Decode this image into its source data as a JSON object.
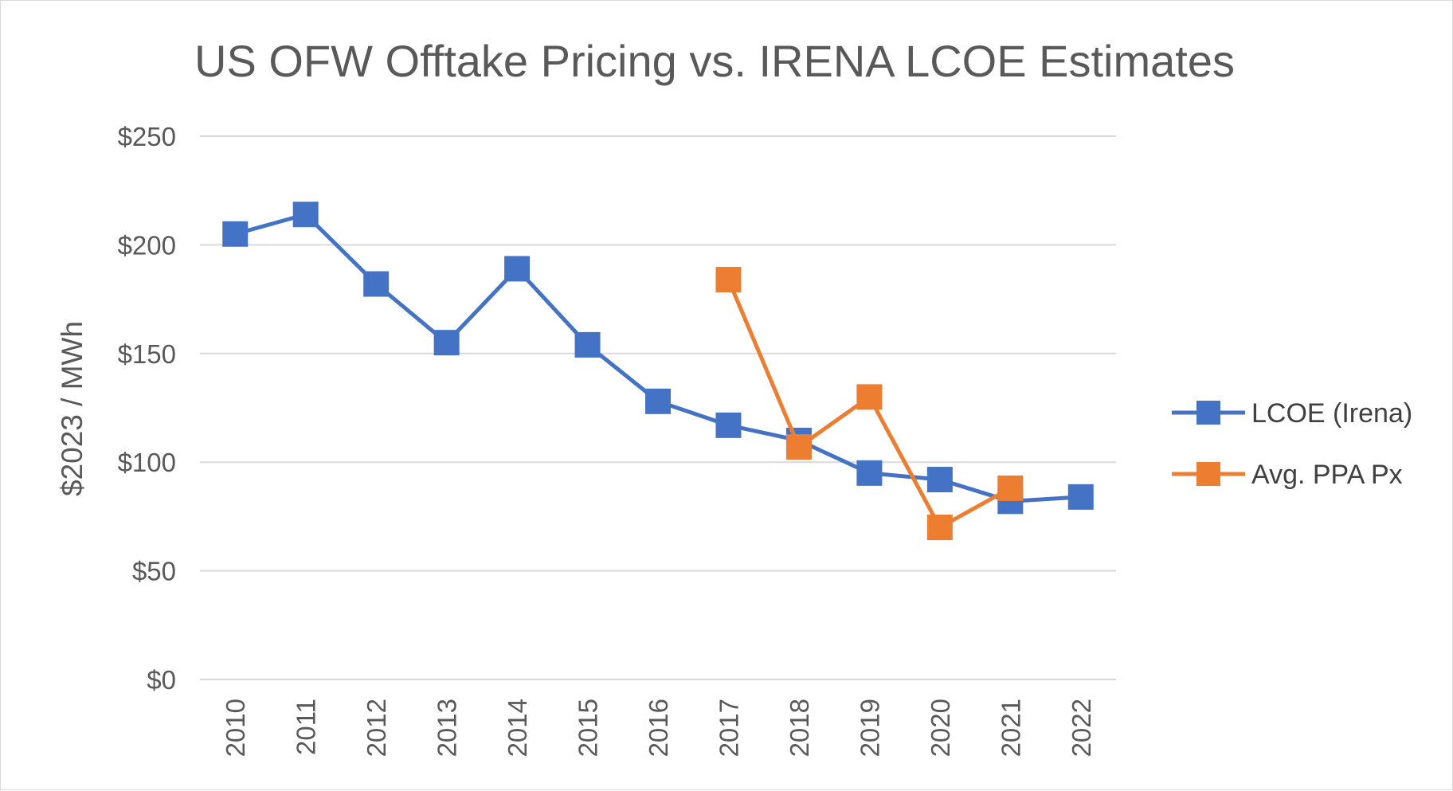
{
  "chart_data": {
    "type": "line",
    "title": "US OFW Offtake Pricing vs. IRENA LCOE Estimates",
    "xlabel": "",
    "ylabel": "$2023 / MWh",
    "categories": [
      "2010",
      "2011",
      "2012",
      "2013",
      "2014",
      "2015",
      "2016",
      "2017",
      "2018",
      "2019",
      "2020",
      "2021",
      "2022"
    ],
    "ylim": [
      0,
      250
    ],
    "yticks": [
      0,
      50,
      100,
      150,
      200,
      250
    ],
    "ytick_labels": [
      "$0",
      "$50",
      "$100",
      "$150",
      "$200",
      "$250"
    ],
    "grid": true,
    "legend_position": "right",
    "series": [
      {
        "name": "LCOE (Irena)",
        "color": "#4472C4",
        "values": [
          205,
          214,
          182,
          155,
          189,
          154,
          128,
          117,
          110,
          95,
          92,
          82,
          84
        ]
      },
      {
        "name": "Avg. PPA Px",
        "color": "#ED7D31",
        "values": [
          null,
          null,
          null,
          null,
          null,
          null,
          null,
          184,
          107,
          130,
          70,
          88,
          null
        ]
      }
    ]
  }
}
